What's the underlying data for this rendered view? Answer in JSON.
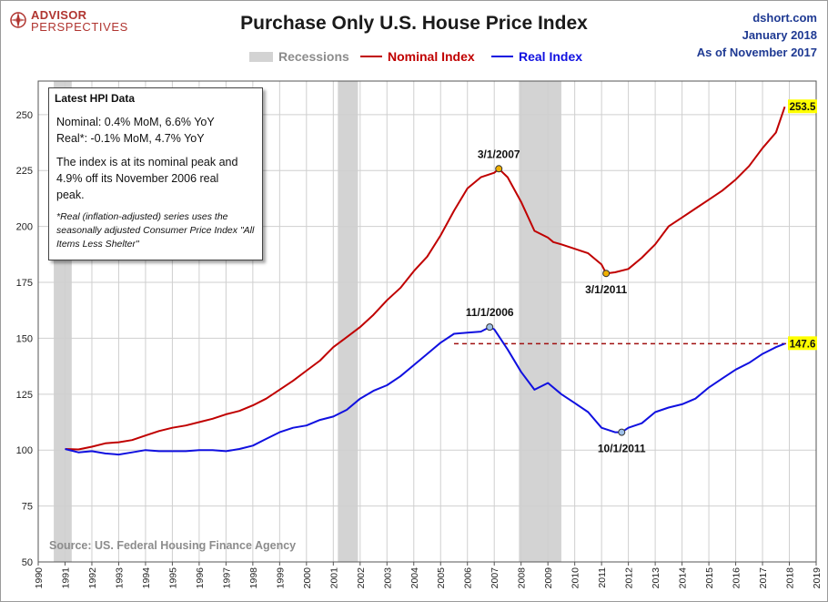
{
  "header": {
    "logo_line1": "ADVISOR",
    "logo_line2": "PERSPECTIVES",
    "title": "Purchase Only U.S. House Price Index",
    "site": "dshort.com",
    "date": "January 2018",
    "as_of": "As of November 2017"
  },
  "legend": {
    "recessions": "Recessions",
    "nominal": "Nominal Index",
    "real": "Real Index"
  },
  "colors": {
    "nominal": "#c00000",
    "real": "#1010e0",
    "recession": "#d3d3d3",
    "accent": "#1f3a93",
    "highlight": "#ffff00"
  },
  "infobox": {
    "title": "Latest HPI Data",
    "nominal_line": "Nominal: 0.4% MoM, 6.6% YoY",
    "real_line": "Real*: -0.1% MoM, 4.7% YoY",
    "text1": "The index is at its nominal peak and",
    "text2": "4.9% off its November 2006 real",
    "text3": "peak.",
    "note": "*Real (inflation-adjusted) series uses the seasonally adjusted Consumer Price Index \"All Items Less Shelter\""
  },
  "source": "Source: US. Federal Housing Finance Agency",
  "chart_data": {
    "type": "line",
    "title": "Purchase Only U.S. House Price Index",
    "xlim": [
      1990,
      2019
    ],
    "ylim": [
      50,
      265
    ],
    "x_ticks": [
      1990,
      1991,
      1992,
      1993,
      1994,
      1995,
      1996,
      1997,
      1998,
      1999,
      2000,
      2001,
      2002,
      2003,
      2004,
      2005,
      2006,
      2007,
      2008,
      2009,
      2010,
      2011,
      2012,
      2013,
      2014,
      2015,
      2016,
      2017,
      2018,
      2019
    ],
    "y_ticks": [
      50,
      75,
      100,
      125,
      150,
      175,
      200,
      225,
      250
    ],
    "grid": true,
    "legend_position": "top",
    "recessions": [
      [
        1990.58,
        1991.25
      ],
      [
        2001.17,
        2001.92
      ],
      [
        2007.92,
        2009.5
      ]
    ],
    "series": [
      {
        "name": "Nominal Index",
        "color": "#c00000",
        "x": [
          1991.0,
          1991.5,
          1992.0,
          1992.5,
          1993.0,
          1993.5,
          1994.0,
          1994.5,
          1995.0,
          1995.5,
          1996.0,
          1996.5,
          1997.0,
          1997.5,
          1998.0,
          1998.5,
          1999.0,
          1999.5,
          2000.0,
          2000.5,
          2001.0,
          2001.5,
          2002.0,
          2002.5,
          2003.0,
          2003.5,
          2004.0,
          2004.5,
          2005.0,
          2005.5,
          2006.0,
          2006.5,
          2007.0,
          2007.17,
          2007.5,
          2008.0,
          2008.5,
          2009.0,
          2009.2,
          2009.5,
          2010.0,
          2010.5,
          2011.0,
          2011.17,
          2011.5,
          2012.0,
          2012.5,
          2013.0,
          2013.5,
          2014.0,
          2014.5,
          2015.0,
          2015.5,
          2016.0,
          2016.5,
          2017.0,
          2017.5,
          2017.83
        ],
        "y": [
          100.5,
          100.3,
          101.5,
          103,
          103.5,
          104.5,
          106.5,
          108.5,
          110,
          111,
          112.5,
          114,
          116,
          117.5,
          120,
          123,
          127,
          131,
          135.5,
          140,
          146,
          150.5,
          155,
          160.5,
          167,
          172.5,
          180,
          186.5,
          196,
          207,
          217,
          222,
          224,
          225.8,
          222,
          211,
          198,
          195,
          193,
          192,
          190,
          188,
          183,
          179,
          179.5,
          181,
          186,
          192,
          200,
          204,
          208,
          212,
          216,
          221,
          227,
          235,
          242,
          253.5
        ]
      },
      {
        "name": "Real Index",
        "color": "#1010e0",
        "x": [
          1991.0,
          1991.5,
          1992.0,
          1992.5,
          1993.0,
          1993.5,
          1994.0,
          1994.5,
          1995.0,
          1995.5,
          1996.0,
          1996.5,
          1997.0,
          1997.5,
          1998.0,
          1998.5,
          1999.0,
          1999.5,
          2000.0,
          2000.5,
          2001.0,
          2001.5,
          2002.0,
          2002.5,
          2003.0,
          2003.5,
          2004.0,
          2004.5,
          2005.0,
          2005.5,
          2006.0,
          2006.5,
          2006.83,
          2007.0,
          2007.5,
          2008.0,
          2008.5,
          2009.0,
          2009.5,
          2010.0,
          2010.5,
          2011.0,
          2011.5,
          2011.75,
          2012.0,
          2012.5,
          2013.0,
          2013.5,
          2014.0,
          2014.5,
          2015.0,
          2015.5,
          2016.0,
          2016.5,
          2017.0,
          2017.5,
          2017.83
        ],
        "y": [
          100.5,
          99,
          99.5,
          98.5,
          98,
          99,
          100,
          99.5,
          99.5,
          99.5,
          100,
          100,
          99.5,
          100.5,
          102,
          105,
          108,
          110,
          111,
          113.5,
          115,
          118,
          123,
          126.5,
          129,
          133,
          138,
          143,
          148,
          152,
          152.5,
          153,
          155,
          154,
          145,
          135,
          127,
          130,
          125,
          121,
          117,
          110,
          108,
          108,
          110,
          112,
          117,
          119,
          120.5,
          123,
          128,
          132,
          136,
          139,
          143,
          146,
          147.6
        ]
      }
    ],
    "annotations": [
      {
        "label": "3/1/2007",
        "x": 2007.17,
        "y": 225.8
      },
      {
        "label": "3/1/2011",
        "x": 2011.17,
        "y": 179
      },
      {
        "label": "11/1/2006",
        "x": 2006.83,
        "y": 155
      },
      {
        "label": "10/1/2011",
        "x": 2011.75,
        "y": 108
      }
    ],
    "end_labels": [
      {
        "label": "253.5",
        "series": "Nominal Index",
        "y": 253.5
      },
      {
        "label": "147.6",
        "series": "Real Index",
        "y": 147.6
      }
    ],
    "reference_line": {
      "y": 147.6,
      "x_from": 2005.5,
      "x_to": 2017.83,
      "style": "dashed",
      "color": "#a01010"
    }
  }
}
